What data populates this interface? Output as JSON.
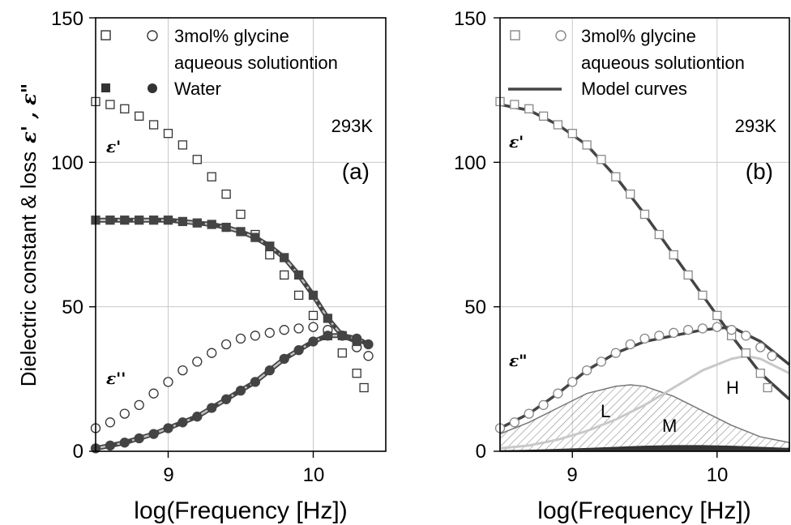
{
  "chart_data": [
    {
      "type": "scatter",
      "panel_label": "(a)",
      "temperature": "293K",
      "xlabel": "log(Frequency [Hz])",
      "ylabel": "Dielectric constant & loss",
      "ylabel_symbols": "ε' , ε\"",
      "xlim": [
        8.5,
        10.5
      ],
      "ylim": [
        0,
        150
      ],
      "xticks": [
        "9",
        "10"
      ],
      "yticks": [
        "0",
        "50",
        "100",
        "150"
      ],
      "grid": true,
      "legend": [
        "3mol% glycine",
        "aqueous solutiontion",
        "Water"
      ],
      "curve_labels": {
        "eps_real": "ε'",
        "eps_imag": "ε''"
      },
      "colors": {
        "water": "#444444",
        "fit": "#c0c0c0",
        "glycine": "#333333"
      },
      "series": [
        {
          "name": "3mol% glycine aqueous solutiontion ε'",
          "marker": "open-square",
          "x": [
            8.5,
            8.6,
            8.7,
            8.8,
            8.9,
            9.0,
            9.1,
            9.2,
            9.3,
            9.4,
            9.5,
            9.6,
            9.7,
            9.8,
            9.9,
            10.0,
            10.1,
            10.2,
            10.3,
            10.35
          ],
          "y": [
            121,
            120,
            118.5,
            116,
            113,
            110,
            106,
            101,
            95,
            89,
            82,
            75,
            68,
            61,
            54,
            47,
            40,
            34,
            27,
            22
          ]
        },
        {
          "name": "3mol% glycine aqueous solutiontion ε''",
          "marker": "open-circle",
          "x": [
            8.5,
            8.6,
            8.7,
            8.8,
            8.9,
            9.0,
            9.1,
            9.2,
            9.3,
            9.4,
            9.5,
            9.6,
            9.7,
            9.8,
            9.9,
            10.0,
            10.1,
            10.2,
            10.3,
            10.38
          ],
          "y": [
            8,
            10,
            13,
            16,
            20,
            24,
            28,
            31,
            34,
            37,
            39,
            40,
            41,
            42,
            42.5,
            43,
            42,
            40,
            36,
            33
          ]
        },
        {
          "name": "Water ε'",
          "marker": "filled-square",
          "x": [
            8.5,
            8.6,
            8.7,
            8.8,
            8.9,
            9.0,
            9.1,
            9.2,
            9.3,
            9.4,
            9.5,
            9.6,
            9.7,
            9.8,
            9.9,
            10.0,
            10.1,
            10.2,
            10.3
          ],
          "y": [
            80,
            80,
            80,
            80,
            80,
            80,
            79.5,
            79,
            78.5,
            77.5,
            76,
            74,
            71,
            67,
            61,
            54,
            46,
            40,
            38
          ]
        },
        {
          "name": "Water ε''",
          "marker": "filled-circle",
          "x": [
            8.5,
            8.6,
            8.7,
            8.8,
            8.9,
            9.0,
            9.1,
            9.2,
            9.3,
            9.4,
            9.5,
            9.6,
            9.7,
            9.8,
            9.9,
            10.0,
            10.1,
            10.2,
            10.3,
            10.38
          ],
          "y": [
            1,
            2,
            3,
            4.5,
            6,
            8,
            10,
            12,
            15,
            18,
            21,
            24,
            28,
            32,
            35,
            38,
            40,
            40,
            39,
            37
          ]
        }
      ]
    },
    {
      "type": "scatter",
      "panel_label": "(b)",
      "temperature": "293K",
      "xlabel": "log(Frequency [Hz])",
      "xlim": [
        8.5,
        10.5
      ],
      "ylim": [
        0,
        150
      ],
      "xticks": [
        "9",
        "10"
      ],
      "yticks": [
        "0",
        "50",
        "100",
        "150"
      ],
      "grid": true,
      "legend": [
        "3mol% glycine",
        "aqueous solutiontion",
        "Model curves"
      ],
      "curve_labels": {
        "eps_real": "ε'",
        "eps_imag": "ε\""
      },
      "component_labels": [
        "L",
        "M",
        "H"
      ],
      "colors": {
        "data": "#888888",
        "model": "#444444",
        "component_H": "#c8c8c8",
        "hatch": "#777777"
      },
      "series": [
        {
          "name": "3mol% glycine aqueous solutiontion ε'",
          "marker": "open-square",
          "x": [
            8.5,
            8.6,
            8.7,
            8.8,
            8.9,
            9.0,
            9.1,
            9.2,
            9.3,
            9.4,
            9.5,
            9.6,
            9.7,
            9.8,
            9.9,
            10.0,
            10.1,
            10.2,
            10.3,
            10.35
          ],
          "y": [
            121,
            120,
            118.5,
            116,
            113,
            110,
            106,
            101,
            95,
            89,
            82,
            75,
            68,
            61,
            54,
            47,
            40,
            34,
            27,
            22
          ]
        },
        {
          "name": "3mol% glycine aqueous solutiontion ε''",
          "marker": "open-circle",
          "x": [
            8.5,
            8.6,
            8.7,
            8.8,
            8.9,
            9.0,
            9.1,
            9.2,
            9.3,
            9.4,
            9.5,
            9.6,
            9.7,
            9.8,
            9.9,
            10.0,
            10.1,
            10.2,
            10.3,
            10.38
          ],
          "y": [
            8,
            10,
            13,
            16,
            20,
            24,
            28,
            31,
            34,
            37,
            39,
            40,
            41,
            42,
            42.5,
            43,
            42,
            40,
            36,
            33
          ]
        }
      ],
      "model_curves": [
        {
          "name": "ε' model",
          "x": [
            8.5,
            8.7,
            8.9,
            9.1,
            9.3,
            9.5,
            9.7,
            9.9,
            10.1,
            10.3,
            10.5
          ],
          "y": [
            120,
            118,
            113,
            106,
            95,
            82,
            68,
            54,
            40,
            27,
            18
          ]
        },
        {
          "name": "ε'' model",
          "x": [
            8.5,
            8.7,
            8.9,
            9.1,
            9.3,
            9.5,
            9.7,
            9.9,
            10.1,
            10.3,
            10.5
          ],
          "y": [
            8,
            13,
            20,
            28,
            34,
            38,
            40,
            42,
            43,
            38,
            30
          ]
        },
        {
          "name": "L",
          "x": [
            8.5,
            8.7,
            8.9,
            9.1,
            9.3,
            9.4,
            9.5,
            9.7,
            9.9,
            10.1,
            10.3,
            10.5
          ],
          "y": [
            6,
            10,
            15,
            20,
            22.5,
            23,
            22.5,
            19,
            14,
            9,
            5,
            3
          ]
        },
        {
          "name": "M",
          "x": [
            8.5,
            8.7,
            8.9,
            9.1,
            9.3,
            9.5,
            9.7,
            9.9,
            10.1,
            10.3,
            10.5
          ],
          "y": [
            0.2,
            0.4,
            0.7,
            1,
            1.4,
            1.8,
            2,
            2,
            1.8,
            1.4,
            1
          ]
        },
        {
          "name": "H",
          "x": [
            8.5,
            8.7,
            8.9,
            9.1,
            9.3,
            9.5,
            9.7,
            9.9,
            10.1,
            10.2,
            10.3,
            10.5
          ],
          "y": [
            1,
            2,
            4,
            7,
            11,
            16,
            22,
            28,
            32,
            33,
            32,
            27
          ]
        }
      ]
    }
  ]
}
